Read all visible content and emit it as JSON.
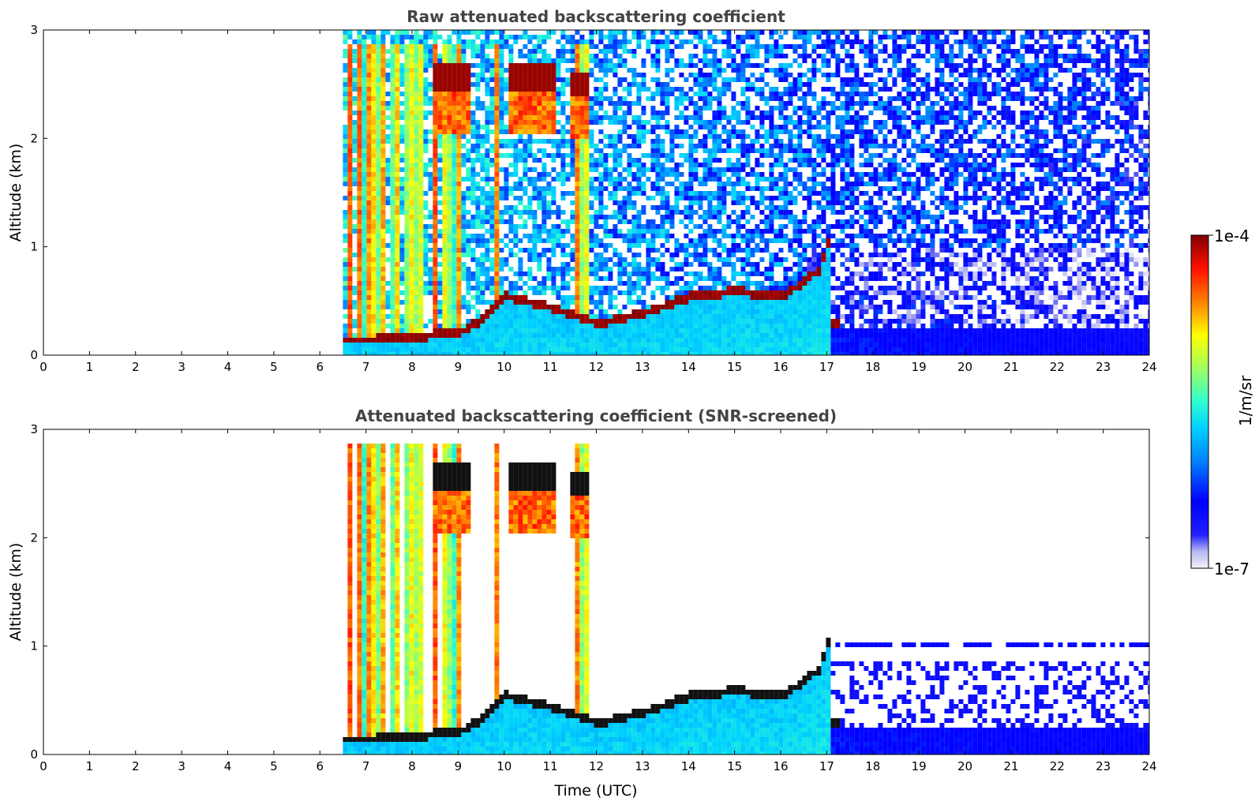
{
  "figure": {
    "colorbar": {
      "label": "1/m/sr",
      "tick_max": "1e-4",
      "tick_min": "1e-7",
      "colormap": "jet (white-to-blue at low end, dark red at high end)",
      "range": [
        1e-07,
        0.0001
      ],
      "scale": "log"
    }
  },
  "chart_data": [
    {
      "type": "heatmap",
      "title": "Raw attenuated backscattering coefficient",
      "xlabel": "",
      "ylabel": "Altitude (km)",
      "xlim": [
        0,
        24
      ],
      "ylim": [
        0,
        3
      ],
      "xticks": [
        "0",
        "1",
        "2",
        "3",
        "4",
        "5",
        "6",
        "7",
        "8",
        "9",
        "10",
        "11",
        "12",
        "13",
        "14",
        "15",
        "16",
        "17",
        "18",
        "19",
        "20",
        "21",
        "22",
        "23",
        "24"
      ],
      "yticks": [
        "0",
        "1",
        "2",
        "3"
      ],
      "data_start_time": 6.5,
      "boundary_layer_top_km": [
        [
          7.0,
          0.15
        ],
        [
          8.0,
          0.18
        ],
        [
          9.0,
          0.22
        ],
        [
          9.5,
          0.35
        ],
        [
          10.0,
          0.55
        ],
        [
          11.0,
          0.45
        ],
        [
          12.0,
          0.3
        ],
        [
          13.0,
          0.4
        ],
        [
          14.0,
          0.55
        ],
        [
          15.0,
          0.6
        ],
        [
          16.0,
          0.55
        ],
        [
          16.8,
          0.8
        ],
        [
          17.0,
          1.05
        ]
      ],
      "cloud_layers": [
        {
          "t_start": 8.4,
          "t_end": 9.2,
          "alt_km": 2.5
        },
        {
          "t_start": 10.0,
          "t_end": 11.1,
          "alt_km": 2.5
        },
        {
          "t_start": 11.4,
          "t_end": 11.8,
          "alt_km": 2.45
        }
      ]
    },
    {
      "type": "heatmap",
      "title": "Attenuated backscattering coefficient (SNR-screened)",
      "xlabel": "Time (UTC)",
      "ylabel": "Altitude (km)",
      "xlim": [
        0,
        24
      ],
      "ylim": [
        0,
        3
      ],
      "xticks": [
        "0",
        "1",
        "2",
        "3",
        "4",
        "5",
        "6",
        "7",
        "8",
        "9",
        "10",
        "11",
        "12",
        "13",
        "14",
        "15",
        "16",
        "17",
        "18",
        "19",
        "20",
        "21",
        "22",
        "23",
        "24"
      ],
      "yticks": [
        "0",
        "1",
        "2",
        "3"
      ],
      "data_start_time": 6.5,
      "residual_layer_alt_km": 1.05
    }
  ]
}
